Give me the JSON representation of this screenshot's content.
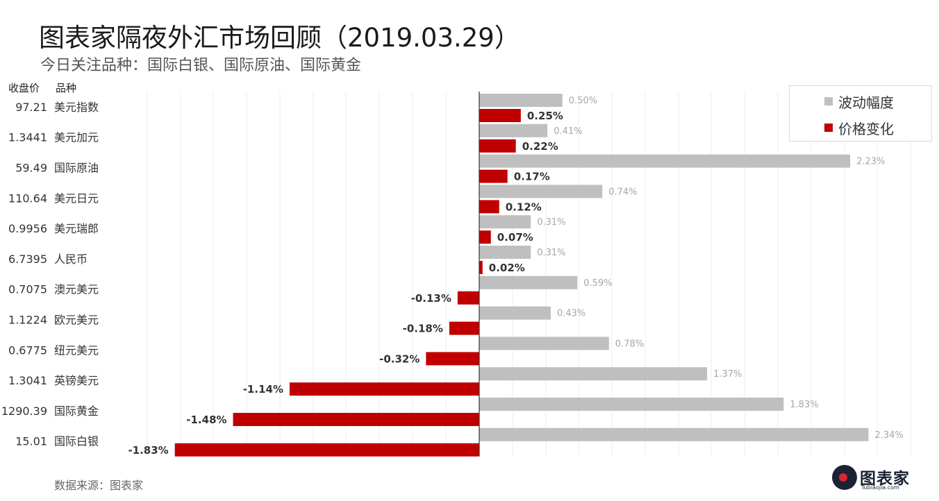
{
  "header": {
    "title": "图表家隔夜外汇市场回顾（2019.03.29）",
    "subtitle": "今日关注品种：国际白银、国际原油、国际黄金"
  },
  "columns": {
    "price_label": "收盘价",
    "name_label": "品种"
  },
  "legend": {
    "items": [
      {
        "label": "波动幅度",
        "color": "#bfbfbf"
      },
      {
        "label": "价格变化",
        "color": "#c00000"
      }
    ]
  },
  "footer": {
    "source": "数据来源：图表家",
    "logo_text": "图表家",
    "logo_sub": "Tubiaojia.com"
  },
  "chart_data": {
    "type": "bar",
    "orientation": "horizontal",
    "categories": [
      "美元指数",
      "美元加元",
      "国际原油",
      "美元日元",
      "美元瑞郎",
      "人民币",
      "澳元美元",
      "欧元美元",
      "纽元美元",
      "英镑美元",
      "国际黄金",
      "国际白银"
    ],
    "prices": [
      "97.21",
      "1.3441",
      "59.49",
      "110.64",
      "0.9956",
      "6.7395",
      "0.7075",
      "1.1224",
      "0.6775",
      "1.3041",
      "1290.39",
      "15.01"
    ],
    "series": [
      {
        "name": "波动幅度",
        "color": "#bfbfbf",
        "values": [
          0.5,
          0.41,
          2.23,
          0.74,
          0.31,
          0.31,
          0.59,
          0.43,
          0.78,
          1.37,
          1.83,
          2.34
        ],
        "labels": [
          "0.50%",
          "0.41%",
          "2.23%",
          "0.74%",
          "0.31%",
          "0.31%",
          "0.59%",
          "0.43%",
          "0.78%",
          "1.37%",
          "1.83%",
          "2.34%"
        ]
      },
      {
        "name": "价格变化",
        "color": "#c00000",
        "values": [
          0.25,
          0.22,
          0.17,
          0.12,
          0.07,
          0.02,
          -0.13,
          -0.18,
          -0.32,
          -1.14,
          -1.48,
          -1.83
        ],
        "labels": [
          "0.25%",
          "0.22%",
          "0.17%",
          "0.12%",
          "0.07%",
          "0.02%",
          "-0.13%",
          "-0.18%",
          "-0.32%",
          "-1.14%",
          "-1.48%",
          "-1.83%"
        ]
      }
    ],
    "xlim": [
      -2.0,
      2.6
    ],
    "grid": true,
    "legend_position": "top-right"
  }
}
